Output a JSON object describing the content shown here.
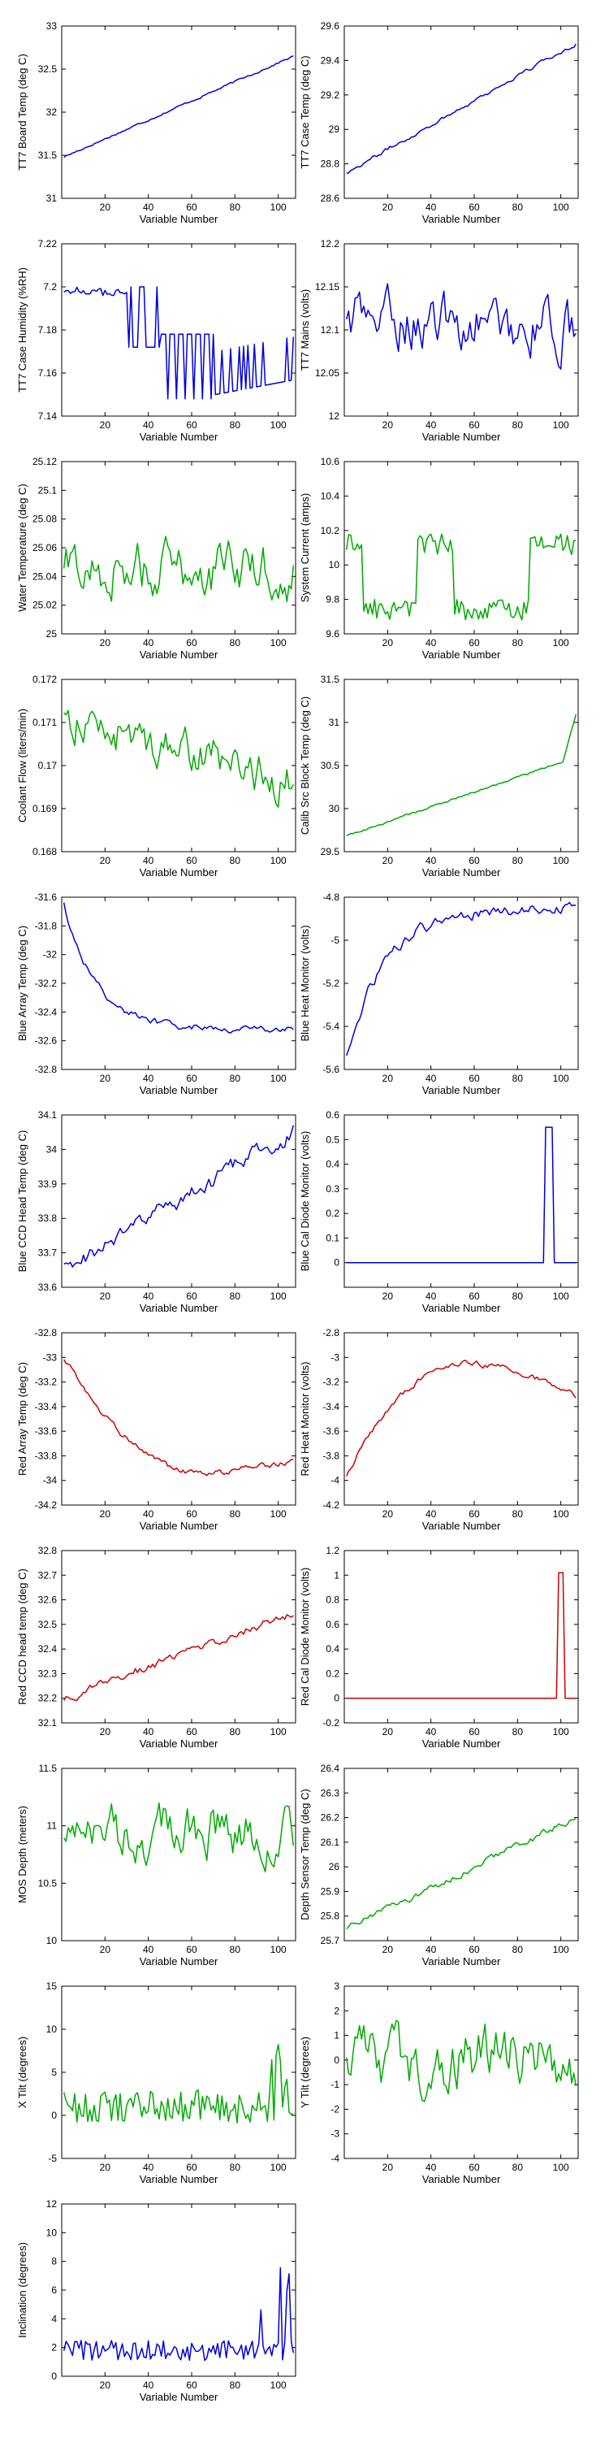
{
  "chart_data": [
    {
      "type": "line",
      "xlabel": "Variable Number",
      "ylabel": "TT7 Board Temp (deg C)",
      "ylim": [
        31,
        33
      ],
      "yticks": [
        "31",
        "31.5",
        "32",
        "32.5",
        "33"
      ],
      "xlim": [
        0,
        108
      ],
      "xticks": [
        "20",
        "40",
        "60",
        "80",
        "100"
      ],
      "color": "#0000dd",
      "pattern": "ramp",
      "from": 31.48,
      "to": 32.65,
      "noise": 0.01
    },
    {
      "type": "line",
      "xlabel": "Variable Number",
      "ylabel": "TT7 Case Temp (deg C)",
      "ylim": [
        28.6,
        29.6
      ],
      "yticks": [
        "28.6",
        "28.8",
        "29",
        "29.2",
        "29.4",
        "29.6"
      ],
      "xlim": [
        0,
        108
      ],
      "xticks": [
        "20",
        "40",
        "60",
        "80",
        "100"
      ],
      "color": "#0000dd",
      "pattern": "ramp",
      "from": 28.75,
      "to": 29.5,
      "noise": 0.01
    },
    {
      "type": "line",
      "xlabel": "Variable Number",
      "ylabel": "TT7 Case Humidity (%RH)",
      "ylim": [
        7.14,
        7.22
      ],
      "yticks": [
        "7.14",
        "7.16",
        "7.18",
        "7.2",
        "7.22"
      ],
      "xlim": [
        0,
        108
      ],
      "xticks": [
        "20",
        "40",
        "60",
        "80",
        "100"
      ],
      "color": "#0000dd",
      "pattern": "humidity",
      "from": 0,
      "to": 0,
      "noise": 0
    },
    {
      "type": "line",
      "xlabel": "Variable Number",
      "ylabel": "TT7 Mains  (volts)",
      "ylim": [
        12,
        12.2
      ],
      "yticks": [
        "12",
        "12.05",
        "12.1",
        "12.15",
        "12.2"
      ],
      "xlim": [
        0,
        108
      ],
      "xticks": [
        "20",
        "40",
        "60",
        "80",
        "100"
      ],
      "color": "#0000dd",
      "pattern": "noise",
      "from": 12.115,
      "to": 12.1,
      "noise": 0.025
    },
    {
      "type": "line",
      "xlabel": "Variable Number",
      "ylabel": "Water Temperature (deg C)",
      "ylim": [
        25,
        25.12
      ],
      "yticks": [
        "25",
        "25.02",
        "25.04",
        "25.06",
        "25.08",
        "25.1",
        "25.12"
      ],
      "xlim": [
        0,
        108
      ],
      "xticks": [
        "20",
        "40",
        "60",
        "80",
        "100"
      ],
      "color": "#00aa00",
      "pattern": "noise",
      "from": 25.045,
      "to": 25.045,
      "noise": 0.015
    },
    {
      "type": "line",
      "xlabel": "Variable Number",
      "ylabel": "System Current (amps)",
      "ylim": [
        9.6,
        10.6
      ],
      "yticks": [
        "9.6",
        "9.8",
        "10",
        "10.2",
        "10.4",
        "10.6"
      ],
      "xlim": [
        0,
        108
      ],
      "xticks": [
        "20",
        "40",
        "60",
        "80",
        "100"
      ],
      "color": "#00aa00",
      "pattern": "current",
      "from": 0,
      "to": 0,
      "noise": 0
    },
    {
      "type": "line",
      "xlabel": "Variable Number",
      "ylabel": "Coolant Flow (liters/min)",
      "ylim": [
        0.168,
        0.172
      ],
      "yticks": [
        "0.168",
        "0.169",
        "0.17",
        "0.171",
        "0.172"
      ],
      "xlim": [
        0,
        108
      ],
      "xticks": [
        "20",
        "40",
        "60",
        "80",
        "100"
      ],
      "color": "#00aa00",
      "pattern": "ramp",
      "from": 0.1711,
      "to": 0.1696,
      "noise": 0.0004
    },
    {
      "type": "line",
      "xlabel": "Variable Number",
      "ylabel": "Calib Src Block Temp (deg C)",
      "ylim": [
        29.5,
        31.5
      ],
      "yticks": [
        "29.5",
        "30",
        "30.5",
        "31",
        "31.5"
      ],
      "xlim": [
        0,
        108
      ],
      "xticks": [
        "20",
        "40",
        "60",
        "80",
        "100"
      ],
      "color": "#00aa00",
      "pattern": "calib",
      "from": 29.68,
      "to": 30.6,
      "noise": 0.01
    },
    {
      "type": "line",
      "xlabel": "Variable Number",
      "ylabel": "Blue Array Temp (deg C)",
      "ylim": [
        -32.8,
        -31.6
      ],
      "yticks": [
        "-32.8",
        "-32.6",
        "-32.4",
        "-32.2",
        "-32",
        "-31.8",
        "-31.6"
      ],
      "xlim": [
        0,
        108
      ],
      "xticks": [
        "20",
        "40",
        "60",
        "80",
        "100"
      ],
      "color": "#0000dd",
      "pattern": "decay",
      "from": -31.65,
      "to": -32.52,
      "noise": 0.02
    },
    {
      "type": "line",
      "xlabel": "Variable Number",
      "ylabel": "Blue Heat Monitor (volts)",
      "ylim": [
        -5.6,
        -4.8
      ],
      "yticks": [
        "-5.6",
        "-5.4",
        "-5.2",
        "-5",
        "-4.8"
      ],
      "xlim": [
        0,
        108
      ],
      "xticks": [
        "20",
        "40",
        "60",
        "80",
        "100"
      ],
      "color": "#0000dd",
      "pattern": "rise",
      "from": -5.55,
      "to": -4.85,
      "noise": 0.02
    },
    {
      "type": "line",
      "xlabel": "Variable Number",
      "ylabel": "Blue CCD Head Temp (deg C)",
      "ylim": [
        33.6,
        34.1
      ],
      "yticks": [
        "33.6",
        "33.7",
        "33.8",
        "33.9",
        "34",
        "34.1"
      ],
      "xlim": [
        0,
        108
      ],
      "xticks": [
        "20",
        "40",
        "60",
        "80",
        "100"
      ],
      "color": "#0000dd",
      "pattern": "ramp",
      "from": 33.65,
      "to": 34.05,
      "noise": 0.02
    },
    {
      "type": "line",
      "xlabel": "Variable Number",
      "ylabel": "Blue Cal Diode Monitor (volts)",
      "ylim": [
        -0.1,
        0.6
      ],
      "yticks": [
        "0",
        "0.1",
        "0.2",
        "0.3",
        "0.4",
        "0.5",
        "0.6"
      ],
      "xlim": [
        0,
        108
      ],
      "xticks": [
        "20",
        "40",
        "60",
        "80",
        "100"
      ],
      "color": "#0000dd",
      "pattern": "pulse",
      "from": 0,
      "to": 0.55,
      "noise": 0
    },
    {
      "type": "line",
      "xlabel": "Variable Number",
      "ylabel": "Red Array Temp (deg C)",
      "ylim": [
        -34.2,
        -32.8
      ],
      "yticks": [
        "-34.2",
        "-34",
        "-33.8",
        "-33.6",
        "-33.4",
        "-33.2",
        "-33",
        "-32.8"
      ],
      "xlim": [
        0,
        108
      ],
      "xticks": [
        "20",
        "40",
        "60",
        "80",
        "100"
      ],
      "color": "#cc0000",
      "pattern": "redarray",
      "from": -33,
      "to": -33.9,
      "noise": 0.02
    },
    {
      "type": "line",
      "xlabel": "Variable Number",
      "ylabel": "Red Heat Monitor (volts)",
      "ylim": [
        -4.2,
        -2.8
      ],
      "yticks": [
        "-4.2",
        "-4",
        "-3.8",
        "-3.6",
        "-3.4",
        "-3.2",
        "-3",
        "-2.8"
      ],
      "xlim": [
        0,
        108
      ],
      "xticks": [
        "20",
        "40",
        "60",
        "80",
        "100"
      ],
      "color": "#cc0000",
      "pattern": "arch",
      "from": -3.95,
      "to": -3.05,
      "noise": 0.02
    },
    {
      "type": "line",
      "xlabel": "Variable Number",
      "ylabel": "Red CCD head temp (deg C)",
      "ylim": [
        32.1,
        32.8
      ],
      "yticks": [
        "32.1",
        "32.2",
        "32.3",
        "32.4",
        "32.5",
        "32.6",
        "32.7",
        "32.8"
      ],
      "xlim": [
        0,
        108
      ],
      "xticks": [
        "20",
        "40",
        "60",
        "80",
        "100"
      ],
      "color": "#cc0000",
      "pattern": "ramp",
      "from": 32.2,
      "to": 32.55,
      "noise": 0.015
    },
    {
      "type": "line",
      "xlabel": "Variable Number",
      "ylabel": "Red Cal Diode Monitor (volts)",
      "ylim": [
        -0.2,
        1.2
      ],
      "yticks": [
        "-0.2",
        "0",
        "0.2",
        "0.4",
        "0.6",
        "0.8",
        "1",
        "1.2"
      ],
      "xlim": [
        0,
        108
      ],
      "xticks": [
        "20",
        "40",
        "60",
        "80",
        "100"
      ],
      "color": "#cc0000",
      "pattern": "pulse2",
      "from": 0,
      "to": 1.02,
      "noise": 0
    },
    {
      "type": "line",
      "xlabel": "Variable Number",
      "ylabel": "MOS Depth  (meters)",
      "ylim": [
        10,
        11.5
      ],
      "yticks": [
        "10",
        "10.5",
        "11",
        "11.5"
      ],
      "xlim": [
        0,
        108
      ],
      "xticks": [
        "20",
        "40",
        "60",
        "80",
        "100"
      ],
      "color": "#00aa00",
      "pattern": "noise",
      "from": 10.95,
      "to": 10.95,
      "noise": 0.18
    },
    {
      "type": "line",
      "xlabel": "Variable Number",
      "ylabel": "Depth Sensor Temp (deg C)",
      "ylim": [
        25.7,
        26.4
      ],
      "yticks": [
        "25.7",
        "25.8",
        "25.9",
        "26",
        "26.1",
        "26.2",
        "26.3",
        "26.4"
      ],
      "xlim": [
        0,
        108
      ],
      "xticks": [
        "20",
        "40",
        "60",
        "80",
        "100"
      ],
      "color": "#00aa00",
      "pattern": "ramp",
      "from": 25.75,
      "to": 26.2,
      "noise": 0.012
    },
    {
      "type": "line",
      "xlabel": "Variable Number",
      "ylabel": "X Tilt  (degrees)",
      "ylim": [
        -5,
        15
      ],
      "yticks": [
        "-5",
        "0",
        "5",
        "10",
        "15"
      ],
      "xlim": [
        0,
        108
      ],
      "xticks": [
        "20",
        "40",
        "60",
        "80",
        "100"
      ],
      "color": "#00aa00",
      "pattern": "xtilt",
      "from": 1,
      "to": 1,
      "noise": 1.2
    },
    {
      "type": "line",
      "xlabel": "Variable Number",
      "ylabel": "Y Tilt  (degrees)",
      "ylim": [
        -4,
        3
      ],
      "yticks": [
        "-4",
        "-3",
        "-2",
        "-1",
        "0",
        "1",
        "2",
        "3"
      ],
      "xlim": [
        0,
        108
      ],
      "xticks": [
        "20",
        "40",
        "60",
        "80",
        "100"
      ],
      "color": "#00aa00",
      "pattern": "noise",
      "from": 0,
      "to": 0,
      "noise": 1.0
    },
    {
      "type": "line",
      "xlabel": "Variable Number",
      "ylabel": "Inclination  (degrees)",
      "ylim": [
        0,
        12
      ],
      "yticks": [
        "0",
        "2",
        "4",
        "6",
        "8",
        "10",
        "12"
      ],
      "xlim": [
        0,
        108
      ],
      "xticks": [
        "20",
        "40",
        "60",
        "80",
        "100"
      ],
      "color": "#0000dd",
      "pattern": "incl",
      "from": 2,
      "to": 2,
      "noise": 0.6
    }
  ]
}
